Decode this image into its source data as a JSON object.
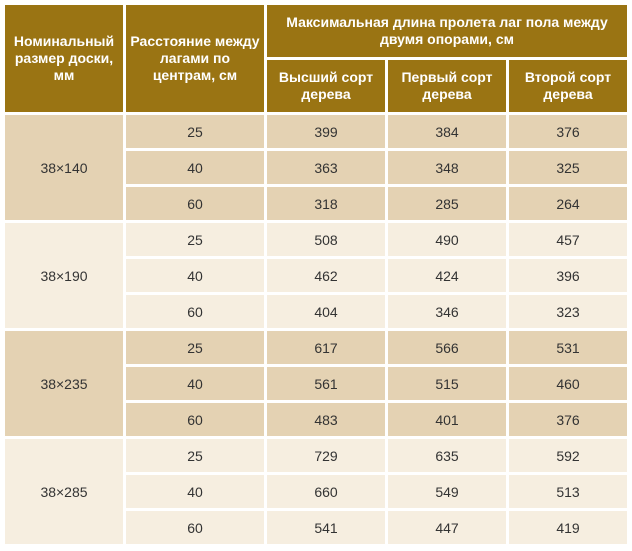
{
  "table": {
    "header": {
      "nominal_size": "Номинальный размер доски, мм",
      "joist_spacing": "Расстояние между лагами по центрам, см",
      "max_span": "Максимальная длина пролета лаг пола между двумя опорами, см",
      "grades": [
        "Высший сорт дерева",
        "Первый сорт дерева",
        "Второй сорт дерева"
      ]
    },
    "groups": [
      {
        "size": "38×140",
        "rows": [
          {
            "spacing": "25",
            "values": [
              "399",
              "384",
              "376"
            ]
          },
          {
            "spacing": "40",
            "values": [
              "363",
              "348",
              "325"
            ]
          },
          {
            "spacing": "60",
            "values": [
              "318",
              "285",
              "264"
            ]
          }
        ]
      },
      {
        "size": "38×190",
        "rows": [
          {
            "spacing": "25",
            "values": [
              "508",
              "490",
              "457"
            ]
          },
          {
            "spacing": "40",
            "values": [
              "462",
              "424",
              "396"
            ]
          },
          {
            "spacing": "60",
            "values": [
              "404",
              "346",
              "323"
            ]
          }
        ]
      },
      {
        "size": "38×235",
        "rows": [
          {
            "spacing": "25",
            "values": [
              "617",
              "566",
              "531"
            ]
          },
          {
            "spacing": "40",
            "values": [
              "561",
              "515",
              "460"
            ]
          },
          {
            "spacing": "60",
            "values": [
              "483",
              "401",
              "376"
            ]
          }
        ]
      },
      {
        "size": "38×285",
        "rows": [
          {
            "spacing": "25",
            "values": [
              "729",
              "635",
              "592"
            ]
          },
          {
            "spacing": "40",
            "values": [
              "660",
              "549",
              "513"
            ]
          },
          {
            "spacing": "60",
            "values": [
              "541",
              "447",
              "419"
            ]
          }
        ]
      }
    ]
  },
  "colors": {
    "header": "#9a7413",
    "row_dark": "#e4d2b3",
    "row_light": "#f6eee0",
    "text": "#333333"
  }
}
